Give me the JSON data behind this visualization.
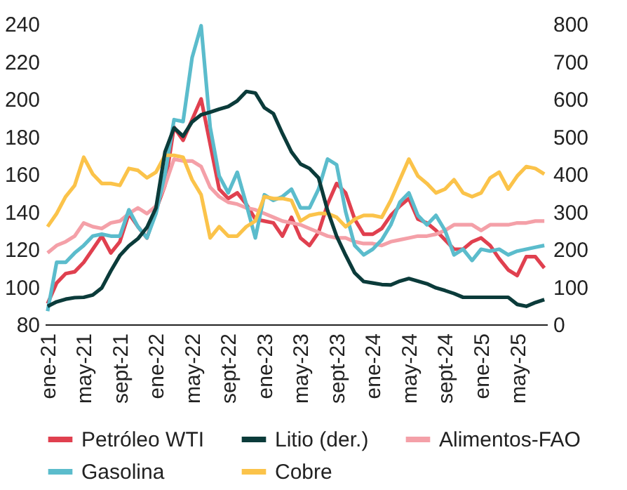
{
  "chart_data": {
    "type": "line",
    "categories": [
      "ene-21",
      null,
      null,
      null,
      "may-21",
      null,
      null,
      null,
      "sept-21",
      null,
      null,
      null,
      "ene-22",
      null,
      null,
      null,
      "may-22",
      null,
      null,
      null,
      "sept-22",
      null,
      null,
      null,
      "ene-23",
      null,
      null,
      null,
      "may-23",
      null,
      null,
      null,
      "sept-23",
      null,
      null,
      null,
      "ene-24",
      null,
      null,
      null,
      "may-24",
      null,
      null,
      null,
      "sept-24",
      null,
      null,
      null,
      "ene-25",
      null,
      null,
      null,
      "may-25",
      null,
      null,
      null
    ],
    "series": [
      {
        "name": "Petróleo WTI",
        "color": "#e0404f",
        "values": [
          91,
          102,
          107,
          108,
          113,
          120,
          127,
          118,
          124,
          139,
          132,
          126,
          141,
          154,
          185,
          178,
          189,
          200,
          176,
          152,
          147,
          150,
          144,
          136,
          135,
          134,
          127,
          137,
          126,
          122,
          129,
          144,
          155,
          150,
          136,
          128,
          128,
          131,
          138,
          143,
          147,
          136,
          134,
          130,
          125,
          120,
          120,
          124,
          126,
          122,
          115,
          109,
          106,
          116,
          116,
          110
        ]
      },
      {
        "name": "Litio (der.)",
        "color": "#0b3b3a",
        "axis": "y2",
        "values": [
          48,
          60,
          67,
          71,
          72,
          78,
          97,
          142,
          183,
          209,
          228,
          258,
          310,
          459,
          523,
          501,
          539,
          558,
          565,
          573,
          580,
          595,
          620,
          616,
          577,
          561,
          508,
          459,
          427,
          415,
          390,
          303,
          235,
          184,
          137,
          114,
          110,
          106,
          105,
          115,
          122,
          115,
          108,
          97,
          90,
          82,
          72,
          72,
          72,
          72,
          72,
          72,
          53,
          48,
          58,
          66
        ]
      },
      {
        "name": "Alimentos-FAO",
        "color": "#f4a0a8",
        "values": [
          118,
          122,
          124,
          127,
          134,
          132,
          131,
          134,
          135,
          139,
          142,
          139,
          143,
          154,
          168,
          167,
          167,
          164,
          153,
          148,
          145,
          144,
          142,
          141,
          139,
          137,
          135,
          134,
          133,
          131,
          129,
          127,
          126,
          126,
          124,
          123,
          123,
          122,
          124,
          125,
          126,
          127,
          127,
          128,
          130,
          133,
          133,
          133,
          130,
          133,
          133,
          133,
          134,
          134,
          135,
          135
        ]
      },
      {
        "name": "Gasolina",
        "color": "#5bbccc",
        "values": [
          87,
          113,
          113,
          118,
          122,
          127,
          128,
          127,
          127,
          141,
          132,
          126,
          139,
          160,
          189,
          188,
          222,
          239,
          185,
          159,
          150,
          161,
          144,
          126,
          149,
          146,
          148,
          152,
          142,
          142,
          152,
          168,
          165,
          140,
          122,
          117,
          120,
          125,
          133,
          145,
          150,
          138,
          133,
          138,
          130,
          117,
          120,
          114,
          120,
          119,
          120,
          117,
          119,
          120,
          121,
          122
        ]
      },
      {
        "name": "Cobre",
        "color": "#fbc34a",
        "values": [
          132,
          139,
          148,
          154,
          169,
          160,
          155,
          155,
          154,
          163,
          162,
          158,
          161,
          170,
          170,
          169,
          157,
          149,
          126,
          132,
          127,
          127,
          132,
          135,
          148,
          147,
          147,
          146,
          135,
          138,
          139,
          139,
          137,
          132,
          136,
          138,
          138,
          137,
          146,
          157,
          168,
          159,
          155,
          150,
          152,
          157,
          150,
          148,
          150,
          158,
          161,
          152,
          159,
          164,
          163,
          160
        ]
      }
    ],
    "ylim": [
      80,
      240
    ],
    "yticks": [
      80,
      100,
      120,
      140,
      160,
      180,
      200,
      220,
      240
    ],
    "y2lim": [
      0,
      800
    ],
    "y2ticks": [
      0,
      100,
      200,
      300,
      400,
      500,
      600,
      700,
      800
    ],
    "legend": "bottom",
    "grid": false
  }
}
